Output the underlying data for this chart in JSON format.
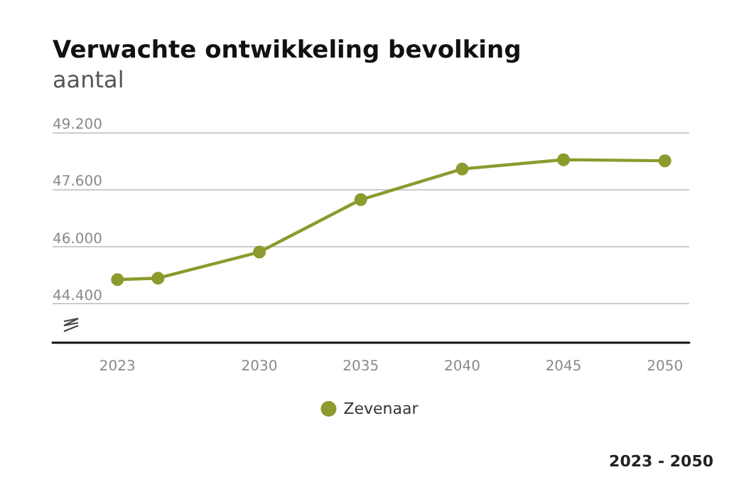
{
  "chart_data": {
    "type": "line",
    "title": "Verwachte ontwikkeling bevolking",
    "subtitle": "aantal",
    "x": [
      2023,
      2025,
      2030,
      2035,
      2040,
      2045,
      2050
    ],
    "series": [
      {
        "name": "Zevenaar",
        "color": "#8c9a2e",
        "values": [
          45070,
          45110,
          45840,
          47310,
          48170,
          48430,
          48400
        ]
      }
    ],
    "xlim": [
      2019.8,
      2051.2
    ],
    "xticks": [
      2023,
      2030,
      2035,
      2040,
      2045,
      2050
    ],
    "ylim": [
      43300,
      49200
    ],
    "yticks": [
      {
        "value": 44400,
        "label": "44.400"
      },
      {
        "value": 46000,
        "label": "46.000"
      },
      {
        "value": 47600,
        "label": "47.600"
      },
      {
        "value": 49200,
        "label": "49.200"
      }
    ],
    "grid": "y",
    "legend": "bottom",
    "marker": "circle",
    "line_style": "solid",
    "annotations": [
      "2023 - 2050"
    ]
  }
}
